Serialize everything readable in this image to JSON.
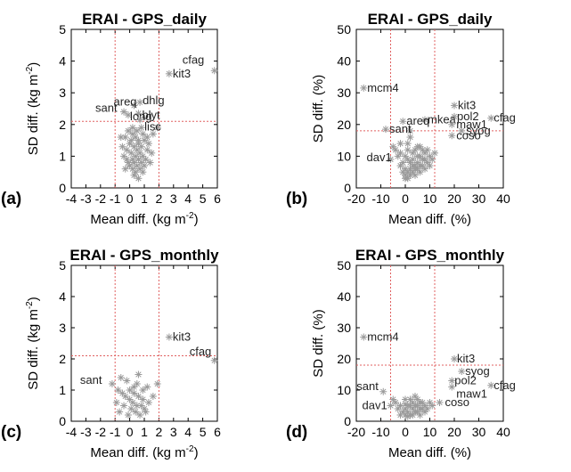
{
  "figure": {
    "colors": {
      "point": "#9a9a9a",
      "threshold": "#e06060",
      "axis": "#000000",
      "label": "#222222"
    },
    "marker_glyph": "asterisk",
    "y_label_suffix_note": "superscripts rendered for m-2",
    "panels_order": [
      "a",
      "b",
      "c",
      "d"
    ]
  },
  "chart_data": [
    {
      "panel": "(a)",
      "type": "scatter",
      "title": "ERAI - GPS_daily",
      "xlabel_base": "Mean diff. (kg m",
      "xlabel_sup": "-2",
      "xlabel_end": ")",
      "ylabel_base": "SD diff. (kg m",
      "ylabel_sup": "-2",
      "ylabel_end": ")",
      "xlim": [
        -4,
        6
      ],
      "ylim": [
        0,
        5
      ],
      "xticks": [
        "-4",
        "-3",
        "-2",
        "-1",
        "0",
        "1",
        "2",
        "3",
        "4",
        "5",
        "6"
      ],
      "yticks": [
        "0",
        "1",
        "2",
        "3",
        "4",
        "5"
      ],
      "thresholds": {
        "x": [
          -1,
          2
        ],
        "y": [
          2.1
        ]
      },
      "labeled_points": [
        {
          "x": 5.8,
          "y": 3.7,
          "label": "cfag",
          "dx": -36,
          "dy": -8
        },
        {
          "x": 2.7,
          "y": 3.6,
          "label": "kit3",
          "dx": 4,
          "dy": 4
        },
        {
          "x": 0.7,
          "y": 2.7,
          "label": "dhlg",
          "dx": 3,
          "dy": 2
        },
        {
          "x": 0.3,
          "y": 2.6,
          "label": "areq",
          "dx": -23,
          "dy": 0
        },
        {
          "x": -0.4,
          "y": 2.4,
          "label": "sant",
          "dx": -32,
          "dy": 0
        },
        {
          "x": 0.6,
          "y": 2.35,
          "label": "blyt",
          "dx": 4,
          "dy": 6
        },
        {
          "x": -0.1,
          "y": 2.3,
          "label": "long",
          "dx": 2,
          "dy": 6
        },
        {
          "x": 0.7,
          "y": 2.15,
          "label": "lisc",
          "dx": 5,
          "dy": 12
        }
      ],
      "points": [
        [
          -0.1,
          1.8
        ],
        [
          0.2,
          1.7
        ],
        [
          0.4,
          1.6
        ],
        [
          -0.3,
          1.6
        ],
        [
          0.6,
          1.5
        ],
        [
          1.0,
          1.5
        ],
        [
          0.0,
          1.4
        ],
        [
          0.3,
          1.3
        ],
        [
          0.8,
          1.3
        ],
        [
          -0.2,
          1.2
        ],
        [
          0.5,
          1.2
        ],
        [
          1.2,
          1.2
        ],
        [
          0.1,
          1.1
        ],
        [
          0.7,
          1.1
        ],
        [
          -0.4,
          1.0
        ],
        [
          0.4,
          1.0
        ],
        [
          0.9,
          1.0
        ],
        [
          0.2,
          0.9
        ],
        [
          0.6,
          0.9
        ],
        [
          1.1,
          0.9
        ],
        [
          -0.1,
          0.8
        ],
        [
          0.3,
          0.8
        ],
        [
          0.8,
          0.8
        ],
        [
          0.0,
          0.7
        ],
        [
          0.5,
          0.7
        ],
        [
          1.0,
          0.7
        ],
        [
          0.2,
          0.6
        ],
        [
          0.7,
          0.6
        ],
        [
          -0.3,
          0.6
        ],
        [
          0.4,
          0.5
        ],
        [
          0.9,
          0.5
        ],
        [
          0.1,
          1.5
        ],
        [
          0.6,
          1.4
        ],
        [
          1.3,
          1.4
        ],
        [
          1.5,
          1.1
        ],
        [
          -0.5,
          1.3
        ],
        [
          0.2,
          1.9
        ],
        [
          0.9,
          1.7
        ],
        [
          -0.2,
          0.9
        ],
        [
          1.4,
          0.8
        ],
        [
          0.3,
          0.4
        ],
        [
          0.6,
          0.3
        ],
        [
          1.6,
          1.7
        ],
        [
          1.9,
          1.9
        ],
        [
          0.5,
          1.8
        ],
        [
          -0.6,
          1.6
        ],
        [
          0.8,
          1.9
        ],
        [
          1.2,
          1.6
        ]
      ]
    },
    {
      "panel": "(b)",
      "type": "scatter",
      "title": "ERAI - GPS_daily",
      "xlabel_base": "Mean diff. (%)",
      "xlabel_sup": "",
      "xlabel_end": "",
      "ylabel_base": "SD diff.  (%)",
      "ylabel_sup": "",
      "ylabel_end": "",
      "xlim": [
        -20,
        40
      ],
      "ylim": [
        0,
        50
      ],
      "xticks": [
        "-20",
        "-10",
        "0",
        "10",
        "20",
        "30",
        "40"
      ],
      "yticks": [
        "0",
        "10",
        "20",
        "30",
        "40",
        "50"
      ],
      "thresholds": {
        "x": [
          -6,
          12
        ],
        "y": [
          18
        ]
      },
      "labeled_points": [
        {
          "x": -17,
          "y": 31.5,
          "label": "mcm4",
          "dx": 4,
          "dy": 4
        },
        {
          "x": 20,
          "y": 26,
          "label": "kit3",
          "dx": 4,
          "dy": 4
        },
        {
          "x": 20,
          "y": 22.5,
          "label": "pol2",
          "dx": 3,
          "dy": 4
        },
        {
          "x": 35,
          "y": 22,
          "label": "cfag",
          "dx": 3,
          "dy": 4
        },
        {
          "x": 8,
          "y": 21.5,
          "label": "mkea",
          "dx": 3,
          "dy": 4
        },
        {
          "x": -1,
          "y": 21,
          "label": "areq",
          "dx": 4,
          "dy": 4
        },
        {
          "x": 19,
          "y": 20,
          "label": "maw1",
          "dx": 5,
          "dy": 4
        },
        {
          "x": -8,
          "y": 18.5,
          "label": "sant",
          "dx": 4,
          "dy": 4
        },
        {
          "x": 23,
          "y": 18,
          "label": "syog",
          "dx": 5,
          "dy": 4
        },
        {
          "x": 19,
          "y": 16.5,
          "label": "coso",
          "dx": 5,
          "dy": 4
        },
        {
          "x": -6,
          "y": 9,
          "label": "dav1",
          "dx": -27,
          "dy": 2
        }
      ],
      "points": [
        [
          -4,
          12
        ],
        [
          -2,
          11
        ],
        [
          0,
          10
        ],
        [
          1,
          9
        ],
        [
          2,
          8
        ],
        [
          3,
          7
        ],
        [
          4,
          6
        ],
        [
          5,
          8
        ],
        [
          6,
          10
        ],
        [
          7,
          9
        ],
        [
          8,
          11
        ],
        [
          -1,
          8
        ],
        [
          0,
          6
        ],
        [
          1,
          5
        ],
        [
          2,
          4
        ],
        [
          3,
          5
        ],
        [
          4,
          7
        ],
        [
          5,
          6
        ],
        [
          6,
          5
        ],
        [
          7,
          7
        ],
        [
          0,
          4
        ],
        [
          1,
          3
        ],
        [
          2,
          6
        ],
        [
          3,
          9
        ],
        [
          4,
          12
        ],
        [
          5,
          13
        ],
        [
          -3,
          10
        ],
        [
          -2,
          14
        ],
        [
          1,
          14
        ],
        [
          2,
          16
        ],
        [
          9,
          8
        ],
        [
          10,
          10
        ],
        [
          11,
          9
        ],
        [
          3,
          11
        ],
        [
          6,
          13
        ],
        [
          8,
          6
        ],
        [
          -1,
          5
        ],
        [
          0,
          3
        ],
        [
          4,
          4
        ],
        [
          7,
          12
        ],
        [
          -5,
          13
        ],
        [
          9,
          12
        ],
        [
          12,
          11
        ],
        [
          2,
          18
        ],
        [
          1,
          12
        ],
        [
          5,
          10
        ],
        [
          6,
          7
        ],
        [
          8,
          9
        ],
        [
          10,
          7
        ],
        [
          -2,
          7
        ]
      ]
    },
    {
      "panel": "(c)",
      "type": "scatter",
      "title": "ERAI - GPS_monthly",
      "xlabel_base": "Mean diff. (kg m",
      "xlabel_sup": "-2",
      "xlabel_end": ")",
      "ylabel_base": "SD diff. (kg m",
      "ylabel_sup": "-2",
      "ylabel_end": ")",
      "xlim": [
        -4,
        6
      ],
      "ylim": [
        0,
        5
      ],
      "xticks": [
        "-4",
        "-3",
        "-2",
        "-1",
        "0",
        "1",
        "2",
        "3",
        "4",
        "5",
        "6"
      ],
      "yticks": [
        "0",
        "1",
        "2",
        "3",
        "4",
        "5"
      ],
      "thresholds": {
        "x": [
          -1,
          2
        ],
        "y": [
          2.1
        ]
      },
      "labeled_points": [
        {
          "x": 2.7,
          "y": 2.7,
          "label": "kit3",
          "dx": 4,
          "dy": 4
        },
        {
          "x": 5.8,
          "y": 1.95,
          "label": "cfag",
          "dx": -28,
          "dy": -6
        },
        {
          "x": -1.2,
          "y": 1.2,
          "label": "sant",
          "dx": -36,
          "dy": 0
        }
      ],
      "points": [
        [
          -0.8,
          1.0
        ],
        [
          -0.5,
          0.9
        ],
        [
          -0.3,
          0.8
        ],
        [
          0.0,
          0.7
        ],
        [
          0.2,
          0.6
        ],
        [
          0.5,
          0.5
        ],
        [
          0.8,
          0.5
        ],
        [
          1.0,
          0.4
        ],
        [
          1.3,
          0.6
        ],
        [
          1.6,
          0.8
        ],
        [
          -0.6,
          1.4
        ],
        [
          -0.2,
          1.3
        ],
        [
          0.6,
          1.5
        ],
        [
          0.3,
          1.1
        ],
        [
          0.9,
          1.0
        ],
        [
          -0.4,
          0.5
        ],
        [
          0.1,
          0.4
        ],
        [
          0.4,
          0.3
        ],
        [
          0.7,
          0.2
        ],
        [
          1.1,
          0.3
        ],
        [
          -0.9,
          0.6
        ],
        [
          0.0,
          1.0
        ],
        [
          0.6,
          0.8
        ],
        [
          1.2,
          1.1
        ],
        [
          1.9,
          1.2
        ],
        [
          -0.1,
          0.2
        ],
        [
          0.3,
          0.9
        ],
        [
          0.9,
          0.7
        ],
        [
          -0.7,
          0.3
        ],
        [
          0.5,
          1.2
        ]
      ]
    },
    {
      "panel": "(d)",
      "type": "scatter",
      "title": "ERAI - GPS_monthly",
      "xlabel_base": "Mean diff. (%)",
      "xlabel_sup": "",
      "xlabel_end": "",
      "ylabel_base": "SD diff.  (%)",
      "ylabel_sup": "",
      "ylabel_end": "",
      "xlim": [
        -20,
        40
      ],
      "ylim": [
        0,
        50
      ],
      "xticks": [
        "-20",
        "-10",
        "0",
        "10",
        "20",
        "30",
        "40"
      ],
      "yticks": [
        "0",
        "10",
        "20",
        "30",
        "40",
        "50"
      ],
      "thresholds": {
        "x": [
          -6,
          12
        ],
        "y": [
          18
        ]
      },
      "labeled_points": [
        {
          "x": -17,
          "y": 27,
          "label": "mcm4",
          "dx": 4,
          "dy": 4
        },
        {
          "x": 20,
          "y": 20,
          "label": "kit3",
          "dx": 3,
          "dy": 4
        },
        {
          "x": 23,
          "y": 16,
          "label": "syog",
          "dx": 4,
          "dy": 4
        },
        {
          "x": 19,
          "y": 13,
          "label": "pol2",
          "dx": 3,
          "dy": 4
        },
        {
          "x": 35,
          "y": 11.5,
          "label": "cfag",
          "dx": 3,
          "dy": 4
        },
        {
          "x": 19,
          "y": 11,
          "label": "maw1",
          "dx": 5,
          "dy": 12
        },
        {
          "x": -9,
          "y": 9.5,
          "label": "sant",
          "dx": -30,
          "dy": -2
        },
        {
          "x": 14,
          "y": 6,
          "label": "coso",
          "dx": 6,
          "dy": 4
        },
        {
          "x": -6,
          "y": 5,
          "label": "dav1",
          "dx": -32,
          "dy": 4
        }
      ],
      "points": [
        [
          -4,
          6
        ],
        [
          -2,
          5
        ],
        [
          0,
          4
        ],
        [
          1,
          3
        ],
        [
          2,
          5
        ],
        [
          3,
          4
        ],
        [
          4,
          3
        ],
        [
          5,
          5
        ],
        [
          6,
          4
        ],
        [
          7,
          6
        ],
        [
          8,
          5
        ],
        [
          -1,
          3
        ],
        [
          0,
          2
        ],
        [
          1,
          5
        ],
        [
          2,
          2
        ],
        [
          3,
          6
        ],
        [
          4,
          5
        ],
        [
          5,
          3
        ],
        [
          6,
          6
        ],
        [
          -3,
          4
        ],
        [
          0,
          7
        ],
        [
          2,
          7
        ],
        [
          4,
          8
        ],
        [
          9,
          4
        ],
        [
          10,
          6
        ],
        [
          -5,
          7
        ],
        [
          1,
          1.5
        ],
        [
          3,
          2
        ],
        [
          6,
          2
        ],
        [
          8,
          3
        ],
        [
          -2,
          2
        ],
        [
          5,
          7
        ],
        [
          7,
          4
        ],
        [
          11,
          5
        ],
        [
          0,
          5.5
        ]
      ]
    }
  ]
}
